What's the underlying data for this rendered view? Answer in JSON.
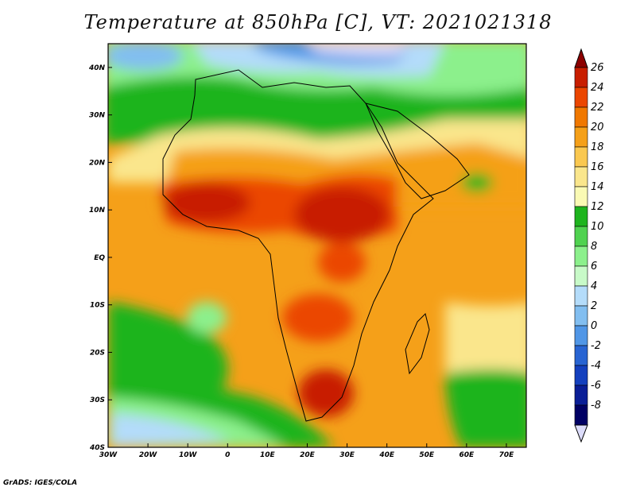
{
  "title": "Temperature at 850hPa [C], VT: 2021021318",
  "credit": "GrADS: IGES/COLA",
  "map": {
    "lon_range": [
      -30,
      75
    ],
    "lat_range": [
      -40,
      45
    ],
    "x_ticks": [
      "30W",
      "20W",
      "10W",
      "0",
      "10E",
      "20E",
      "30E",
      "40E",
      "50E",
      "60E",
      "70E"
    ],
    "y_ticks": [
      "40N",
      "30N",
      "20N",
      "10N",
      "EQ",
      "10S",
      "20S",
      "30S",
      "40S"
    ]
  },
  "colorbar": {
    "labels": [
      "26",
      "24",
      "22",
      "20",
      "18",
      "16",
      "14",
      "12",
      "10",
      "8",
      "6",
      "4",
      "2",
      "0",
      "-2",
      "-4",
      "-6",
      "-8"
    ],
    "colors": [
      "#8c0000",
      "#c81e00",
      "#eb4600",
      "#f07800",
      "#f5a019",
      "#fac850",
      "#fae68c",
      "#fafab4",
      "#1eb41e",
      "#50d250",
      "#8cf08c",
      "#c8fac8",
      "#b4dcfa",
      "#82bef0",
      "#5096e6",
      "#2864d2",
      "#1440be",
      "#0a1e96",
      "#000064",
      "#dcdcfa"
    ]
  }
}
